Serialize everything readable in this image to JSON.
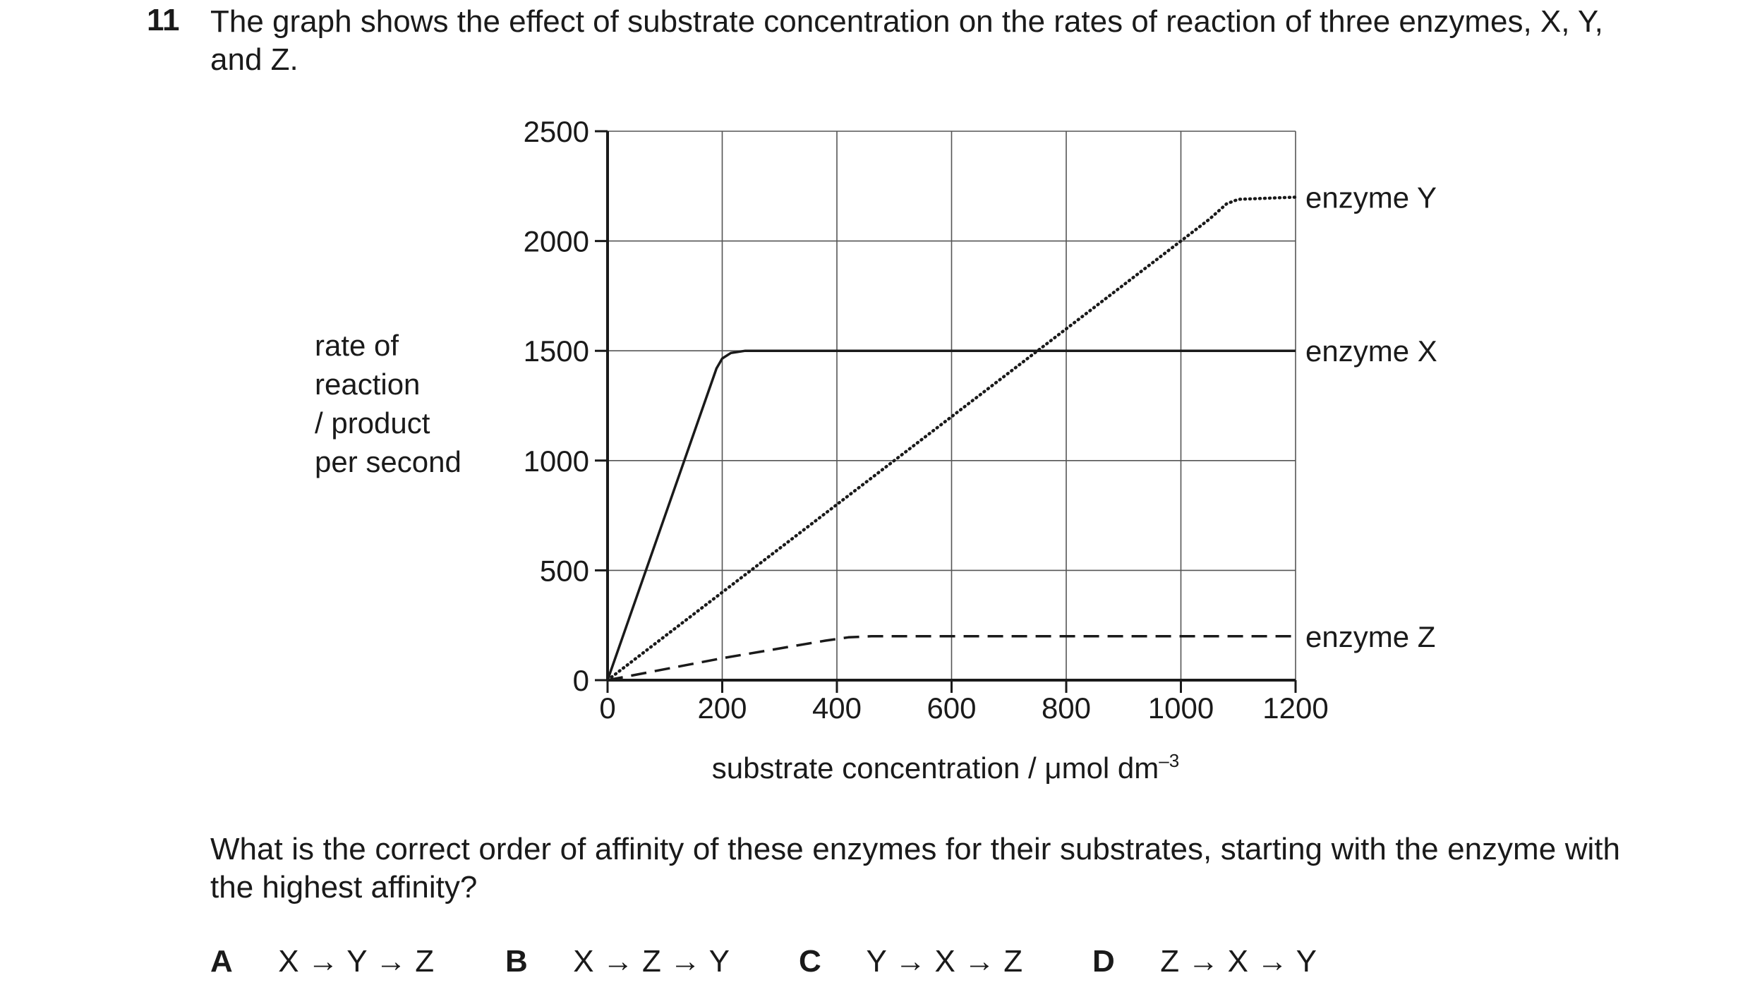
{
  "question": {
    "number": "11",
    "intro": "The graph shows the effect of substrate concentration on the rates of reaction of three enzymes, X, Y, and Z.",
    "prompt": "What is the correct order of affinity of these enzymes for their substrates, starting with the enzyme with the highest affinity?",
    "options": [
      {
        "letter": "A",
        "text": "X → Y → Z"
      },
      {
        "letter": "B",
        "text": "X → Z → Y"
      },
      {
        "letter": "C",
        "text": "Y → X → Z"
      },
      {
        "letter": "D",
        "text": "Z → X → Y"
      }
    ]
  },
  "chart_data": {
    "type": "line",
    "title": "",
    "xlabel": "substrate concentration / μmol dm",
    "xlabel_superscript": "–3",
    "ylabel_lines": [
      "rate of",
      "reaction",
      "/ product",
      "per second"
    ],
    "xlim": [
      0,
      1200
    ],
    "ylim": [
      0,
      2500
    ],
    "x_ticks": [
      0,
      200,
      400,
      600,
      800,
      1000,
      1200
    ],
    "x_tick_labels": [
      "0",
      "200",
      "400",
      "600",
      "800",
      "1000",
      "1200"
    ],
    "y_ticks": [
      0,
      500,
      1000,
      1500,
      2000,
      2500
    ],
    "y_tick_labels": [
      "0",
      "500",
      "1000",
      "1500",
      "2000",
      "2500"
    ],
    "grid": true,
    "series": [
      {
        "name": "enzyme Y",
        "style": "dotted",
        "color": "#1a1a1a",
        "x": [
          0,
          1000,
          1050,
          1080,
          1100,
          1200
        ],
        "y": [
          0,
          2000,
          2100,
          2170,
          2190,
          2200
        ]
      },
      {
        "name": "enzyme X",
        "style": "solid",
        "color": "#1a1a1a",
        "x": [
          0,
          190,
          200,
          215,
          240,
          1200
        ],
        "y": [
          0,
          1420,
          1465,
          1490,
          1500,
          1500
        ]
      },
      {
        "name": "enzyme Z",
        "style": "dashed",
        "color": "#1a1a1a",
        "x": [
          0,
          200,
          380,
          420,
          460,
          1200
        ],
        "y": [
          0,
          100,
          180,
          195,
          200,
          200
        ]
      }
    ]
  }
}
